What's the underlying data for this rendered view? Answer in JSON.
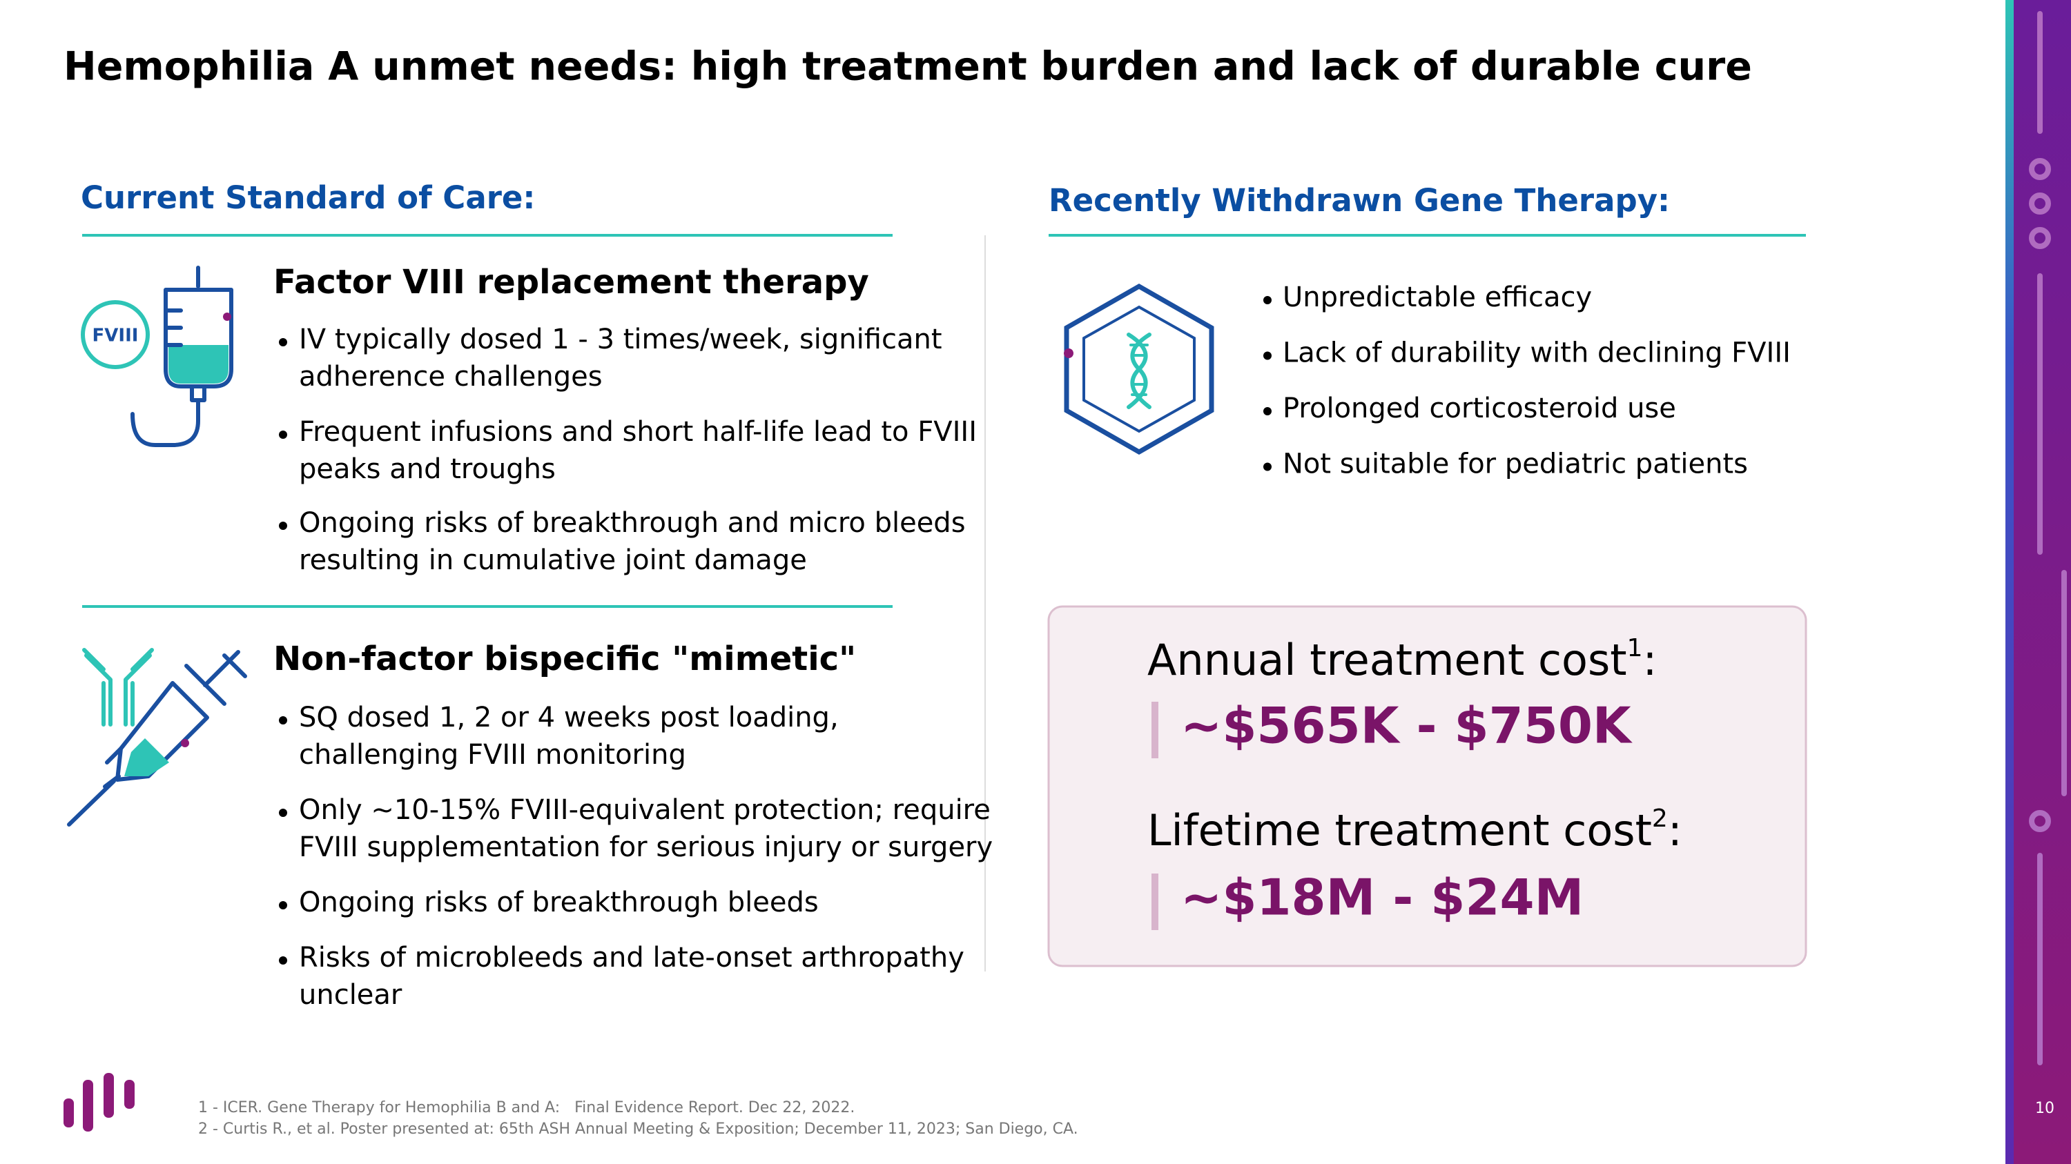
{
  "title": "Hemophilia A unmet needs: high treatment burden and lack of durable cure",
  "left": {
    "heading": "Current Standard of Care:",
    "sections": [
      {
        "heading": "Factor VIII replacement therapy",
        "icon_label": "FVIII",
        "bullets": [
          [
            "IV typically dosed 1 - 3 times/week, significant",
            "adherence challenges"
          ],
          [
            "Frequent infusions and short half-life lead to FVIII",
            "peaks and troughs"
          ],
          [
            "Ongoing risks of breakthrough and micro bleeds",
            "resulting in cumulative joint damage"
          ]
        ]
      },
      {
        "heading": "Non-factor bispecific \"mimetic\"",
        "bullets": [
          [
            "SQ dosed 1, 2 or 4 weeks post loading,",
            "challenging FVIII monitoring"
          ],
          [
            "Only ~10-15% FVIII-equivalent protection; require",
            "FVIII supplementation for serious injury or surgery"
          ],
          [
            "Ongoing risks of breakthrough bleeds"
          ],
          [
            "Risks of microbleeds and late-onset arthropathy",
            "unclear"
          ]
        ]
      }
    ]
  },
  "right": {
    "heading": "Recently Withdrawn Gene Therapy:",
    "bullets": [
      "Unpredictable efficacy",
      "Lack of durability with declining FVIII",
      "Prolonged corticosteroid use",
      "Not suitable for pediatric patients"
    ],
    "costs": [
      {
        "label": "Annual treatment cost",
        "sup": "1",
        "suffix": ":",
        "value": "~$565K - $750K"
      },
      {
        "label": "Lifetime treatment cost",
        "sup": "2",
        "suffix": ":",
        "value": "~$18M - $24M"
      }
    ]
  },
  "footnotes": [
    "1 - ICER. Gene Therapy for Hemophilia B and A:   Final Evidence Report. Dec 22, 2022.",
    "2 - Curtis R., et al. Poster presented at: 65th ASH Annual Meeting & Exposition; December 11, 2023; San Diego, CA."
  ],
  "page_number": "10"
}
